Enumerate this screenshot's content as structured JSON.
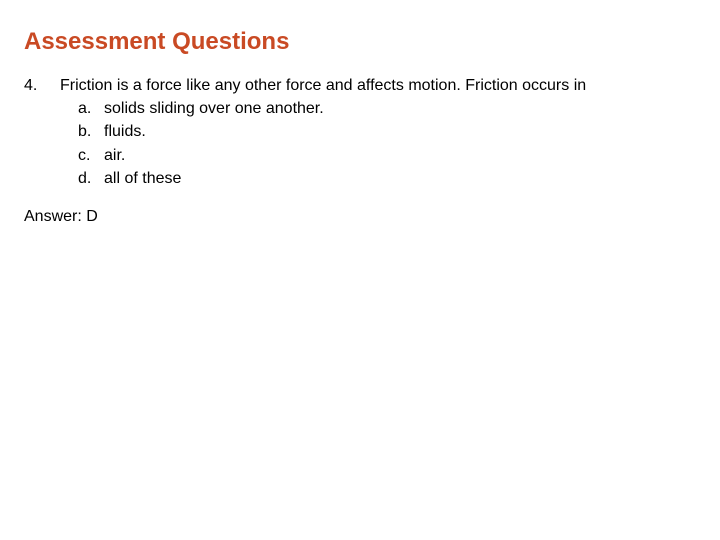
{
  "title": "Assessment Questions",
  "title_color": "#c94a24",
  "text_color": "#000000",
  "background_color": "#ffffff",
  "fontsize_title": 24,
  "fontsize_body": 16,
  "question": {
    "number": "4.",
    "stem": "Friction is a force like any other force and affects motion. Friction occurs in",
    "options": [
      {
        "letter": "a.",
        "text": "solids sliding over one another."
      },
      {
        "letter": "b.",
        "text": "fluids."
      },
      {
        "letter": "c.",
        "text": "air."
      },
      {
        "letter": "d.",
        "text": "all of these"
      }
    ]
  },
  "answer_label": "Answer: D"
}
